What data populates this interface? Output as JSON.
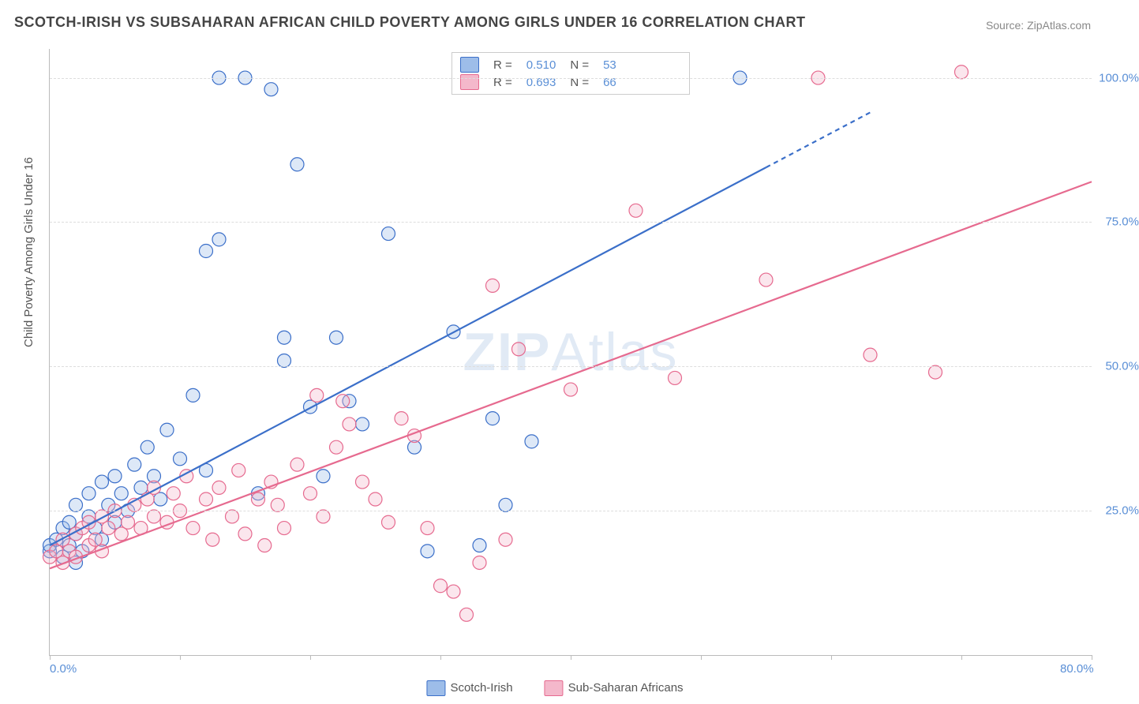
{
  "title": "SCOTCH-IRISH VS SUBSAHARAN AFRICAN CHILD POVERTY AMONG GIRLS UNDER 16 CORRELATION CHART",
  "source_prefix": "Source: ",
  "source_name": "ZipAtlas.com",
  "yaxis_label": "Child Poverty Among Girls Under 16",
  "watermark": "ZIPAtlas",
  "chart": {
    "type": "scatter",
    "xlim": [
      0,
      80
    ],
    "ylim": [
      0,
      105
    ],
    "x_tick_positions": [
      0,
      10,
      20,
      30,
      40,
      50,
      60,
      70,
      80
    ],
    "x_tick_labels_shown": {
      "0": "0.0%",
      "80": "80.0%"
    },
    "y_gridlines": [
      25,
      50,
      75,
      100
    ],
    "y_tick_labels": {
      "25": "25.0%",
      "50": "50.0%",
      "75": "75.0%",
      "100": "100.0%"
    },
    "background_color": "#ffffff",
    "grid_color": "#dddddd",
    "axis_color": "#bbbbbb",
    "tick_label_color": "#5a8fd6",
    "marker_radius": 8.5,
    "marker_stroke_width": 1.2,
    "marker_fill_opacity": 0.35,
    "line_width": 2.2,
    "series": [
      {
        "name": "Scotch-Irish",
        "color_stroke": "#3b6fc9",
        "color_fill": "#9dbde9",
        "R": "0.510",
        "N": "53",
        "trend_line": {
          "x1": 0,
          "y1": 19,
          "x2": 63,
          "y2": 94,
          "dashed_after_x": 55
        },
        "points": [
          [
            0,
            18
          ],
          [
            0,
            19
          ],
          [
            0.5,
            20
          ],
          [
            1,
            17
          ],
          [
            1,
            22
          ],
          [
            1.5,
            19
          ],
          [
            1.5,
            23
          ],
          [
            2,
            16
          ],
          [
            2,
            21
          ],
          [
            2,
            26
          ],
          [
            2.5,
            18
          ],
          [
            3,
            24
          ],
          [
            3,
            28
          ],
          [
            3.5,
            22
          ],
          [
            4,
            20
          ],
          [
            4,
            30
          ],
          [
            4.5,
            26
          ],
          [
            5,
            23
          ],
          [
            5,
            31
          ],
          [
            5.5,
            28
          ],
          [
            6,
            25
          ],
          [
            6.5,
            33
          ],
          [
            7,
            29
          ],
          [
            7.5,
            36
          ],
          [
            8,
            31
          ],
          [
            8.5,
            27
          ],
          [
            9,
            39
          ],
          [
            10,
            34
          ],
          [
            11,
            45
          ],
          [
            12,
            32
          ],
          [
            12,
            70
          ],
          [
            13,
            72
          ],
          [
            13,
            100
          ],
          [
            15,
            100
          ],
          [
            16,
            28
          ],
          [
            17,
            98
          ],
          [
            18,
            51
          ],
          [
            18,
            55
          ],
          [
            19,
            85
          ],
          [
            20,
            43
          ],
          [
            21,
            31
          ],
          [
            22,
            55
          ],
          [
            23,
            44
          ],
          [
            24,
            40
          ],
          [
            26,
            73
          ],
          [
            28,
            36
          ],
          [
            29,
            18
          ],
          [
            31,
            56
          ],
          [
            33,
            19
          ],
          [
            34,
            41
          ],
          [
            35,
            26
          ],
          [
            37,
            37
          ],
          [
            53,
            100
          ]
        ]
      },
      {
        "name": "Sub-Saharan Africans",
        "color_stroke": "#e66a8f",
        "color_fill": "#f4b8cb",
        "R": "0.693",
        "N": "66",
        "trend_line": {
          "x1": 0,
          "y1": 15,
          "x2": 80,
          "y2": 82
        },
        "points": [
          [
            0,
            17
          ],
          [
            0.5,
            18
          ],
          [
            1,
            16
          ],
          [
            1,
            20
          ],
          [
            1.5,
            18
          ],
          [
            2,
            21
          ],
          [
            2,
            17
          ],
          [
            2.5,
            22
          ],
          [
            3,
            19
          ],
          [
            3,
            23
          ],
          [
            3.5,
            20
          ],
          [
            4,
            24
          ],
          [
            4,
            18
          ],
          [
            4.5,
            22
          ],
          [
            5,
            25
          ],
          [
            5.5,
            21
          ],
          [
            6,
            23
          ],
          [
            6.5,
            26
          ],
          [
            7,
            22
          ],
          [
            7.5,
            27
          ],
          [
            8,
            24
          ],
          [
            8,
            29
          ],
          [
            9,
            23
          ],
          [
            9.5,
            28
          ],
          [
            10,
            25
          ],
          [
            10.5,
            31
          ],
          [
            11,
            22
          ],
          [
            12,
            27
          ],
          [
            12.5,
            20
          ],
          [
            13,
            29
          ],
          [
            14,
            24
          ],
          [
            14.5,
            32
          ],
          [
            15,
            21
          ],
          [
            16,
            27
          ],
          [
            16.5,
            19
          ],
          [
            17,
            30
          ],
          [
            17.5,
            26
          ],
          [
            18,
            22
          ],
          [
            19,
            33
          ],
          [
            20,
            28
          ],
          [
            20.5,
            45
          ],
          [
            21,
            24
          ],
          [
            22,
            36
          ],
          [
            22.5,
            44
          ],
          [
            23,
            40
          ],
          [
            24,
            30
          ],
          [
            25,
            27
          ],
          [
            26,
            23
          ],
          [
            27,
            41
          ],
          [
            28,
            38
          ],
          [
            29,
            22
          ],
          [
            30,
            12
          ],
          [
            31,
            11
          ],
          [
            32,
            7
          ],
          [
            33,
            16
          ],
          [
            34,
            64
          ],
          [
            35,
            20
          ],
          [
            36,
            53
          ],
          [
            40,
            46
          ],
          [
            45,
            77
          ],
          [
            48,
            48
          ],
          [
            55,
            65
          ],
          [
            59,
            100
          ],
          [
            63,
            52
          ],
          [
            68,
            49
          ],
          [
            70,
            101
          ]
        ]
      }
    ]
  },
  "legend_top": {
    "R_label": "R =",
    "N_label": "N ="
  },
  "legend_bottom": [
    {
      "series": 0
    },
    {
      "series": 1
    }
  ]
}
